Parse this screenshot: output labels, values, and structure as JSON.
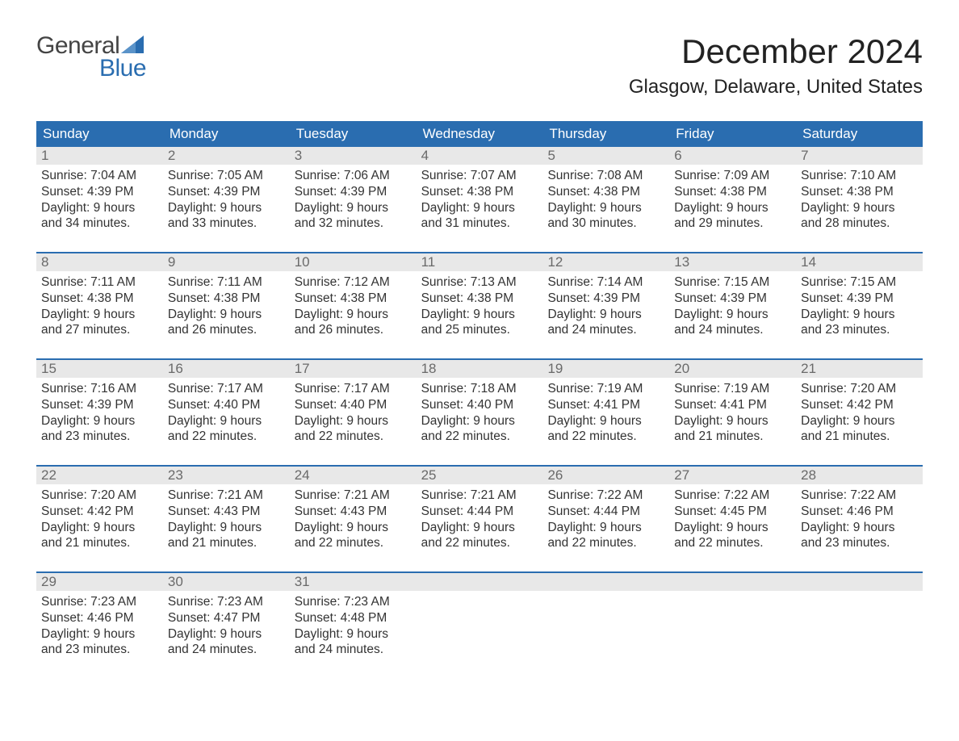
{
  "logo": {
    "word1": "General",
    "word2": "Blue"
  },
  "title": "December 2024",
  "subtitle": "Glasgow, Delaware, United States",
  "colors": {
    "header_bg": "#2a6db0",
    "header_text": "#ffffff",
    "daynum_bg": "#e8e8e8",
    "daynum_text": "#6a6a6a",
    "body_text": "#333333",
    "row_border": "#2a6db0",
    "logo_gray": "#444444",
    "logo_blue": "#2a6db0",
    "page_bg": "#ffffff"
  },
  "typography": {
    "title_fontsize": 42,
    "subtitle_fontsize": 24,
    "weekday_fontsize": 17,
    "daynum_fontsize": 17,
    "body_fontsize": 15.5,
    "logo_fontsize": 30
  },
  "calendar": {
    "type": "table",
    "weekdays": [
      "Sunday",
      "Monday",
      "Tuesday",
      "Wednesday",
      "Thursday",
      "Friday",
      "Saturday"
    ],
    "weeks": [
      [
        {
          "day": "1",
          "sunrise": "Sunrise: 7:04 AM",
          "sunset": "Sunset: 4:39 PM",
          "daylight1": "Daylight: 9 hours",
          "daylight2": "and 34 minutes."
        },
        {
          "day": "2",
          "sunrise": "Sunrise: 7:05 AM",
          "sunset": "Sunset: 4:39 PM",
          "daylight1": "Daylight: 9 hours",
          "daylight2": "and 33 minutes."
        },
        {
          "day": "3",
          "sunrise": "Sunrise: 7:06 AM",
          "sunset": "Sunset: 4:39 PM",
          "daylight1": "Daylight: 9 hours",
          "daylight2": "and 32 minutes."
        },
        {
          "day": "4",
          "sunrise": "Sunrise: 7:07 AM",
          "sunset": "Sunset: 4:38 PM",
          "daylight1": "Daylight: 9 hours",
          "daylight2": "and 31 minutes."
        },
        {
          "day": "5",
          "sunrise": "Sunrise: 7:08 AM",
          "sunset": "Sunset: 4:38 PM",
          "daylight1": "Daylight: 9 hours",
          "daylight2": "and 30 minutes."
        },
        {
          "day": "6",
          "sunrise": "Sunrise: 7:09 AM",
          "sunset": "Sunset: 4:38 PM",
          "daylight1": "Daylight: 9 hours",
          "daylight2": "and 29 minutes."
        },
        {
          "day": "7",
          "sunrise": "Sunrise: 7:10 AM",
          "sunset": "Sunset: 4:38 PM",
          "daylight1": "Daylight: 9 hours",
          "daylight2": "and 28 minutes."
        }
      ],
      [
        {
          "day": "8",
          "sunrise": "Sunrise: 7:11 AM",
          "sunset": "Sunset: 4:38 PM",
          "daylight1": "Daylight: 9 hours",
          "daylight2": "and 27 minutes."
        },
        {
          "day": "9",
          "sunrise": "Sunrise: 7:11 AM",
          "sunset": "Sunset: 4:38 PM",
          "daylight1": "Daylight: 9 hours",
          "daylight2": "and 26 minutes."
        },
        {
          "day": "10",
          "sunrise": "Sunrise: 7:12 AM",
          "sunset": "Sunset: 4:38 PM",
          "daylight1": "Daylight: 9 hours",
          "daylight2": "and 26 minutes."
        },
        {
          "day": "11",
          "sunrise": "Sunrise: 7:13 AM",
          "sunset": "Sunset: 4:38 PM",
          "daylight1": "Daylight: 9 hours",
          "daylight2": "and 25 minutes."
        },
        {
          "day": "12",
          "sunrise": "Sunrise: 7:14 AM",
          "sunset": "Sunset: 4:39 PM",
          "daylight1": "Daylight: 9 hours",
          "daylight2": "and 24 minutes."
        },
        {
          "day": "13",
          "sunrise": "Sunrise: 7:15 AM",
          "sunset": "Sunset: 4:39 PM",
          "daylight1": "Daylight: 9 hours",
          "daylight2": "and 24 minutes."
        },
        {
          "day": "14",
          "sunrise": "Sunrise: 7:15 AM",
          "sunset": "Sunset: 4:39 PM",
          "daylight1": "Daylight: 9 hours",
          "daylight2": "and 23 minutes."
        }
      ],
      [
        {
          "day": "15",
          "sunrise": "Sunrise: 7:16 AM",
          "sunset": "Sunset: 4:39 PM",
          "daylight1": "Daylight: 9 hours",
          "daylight2": "and 23 minutes."
        },
        {
          "day": "16",
          "sunrise": "Sunrise: 7:17 AM",
          "sunset": "Sunset: 4:40 PM",
          "daylight1": "Daylight: 9 hours",
          "daylight2": "and 22 minutes."
        },
        {
          "day": "17",
          "sunrise": "Sunrise: 7:17 AM",
          "sunset": "Sunset: 4:40 PM",
          "daylight1": "Daylight: 9 hours",
          "daylight2": "and 22 minutes."
        },
        {
          "day": "18",
          "sunrise": "Sunrise: 7:18 AM",
          "sunset": "Sunset: 4:40 PM",
          "daylight1": "Daylight: 9 hours",
          "daylight2": "and 22 minutes."
        },
        {
          "day": "19",
          "sunrise": "Sunrise: 7:19 AM",
          "sunset": "Sunset: 4:41 PM",
          "daylight1": "Daylight: 9 hours",
          "daylight2": "and 22 minutes."
        },
        {
          "day": "20",
          "sunrise": "Sunrise: 7:19 AM",
          "sunset": "Sunset: 4:41 PM",
          "daylight1": "Daylight: 9 hours",
          "daylight2": "and 21 minutes."
        },
        {
          "day": "21",
          "sunrise": "Sunrise: 7:20 AM",
          "sunset": "Sunset: 4:42 PM",
          "daylight1": "Daylight: 9 hours",
          "daylight2": "and 21 minutes."
        }
      ],
      [
        {
          "day": "22",
          "sunrise": "Sunrise: 7:20 AM",
          "sunset": "Sunset: 4:42 PM",
          "daylight1": "Daylight: 9 hours",
          "daylight2": "and 21 minutes."
        },
        {
          "day": "23",
          "sunrise": "Sunrise: 7:21 AM",
          "sunset": "Sunset: 4:43 PM",
          "daylight1": "Daylight: 9 hours",
          "daylight2": "and 21 minutes."
        },
        {
          "day": "24",
          "sunrise": "Sunrise: 7:21 AM",
          "sunset": "Sunset: 4:43 PM",
          "daylight1": "Daylight: 9 hours",
          "daylight2": "and 22 minutes."
        },
        {
          "day": "25",
          "sunrise": "Sunrise: 7:21 AM",
          "sunset": "Sunset: 4:44 PM",
          "daylight1": "Daylight: 9 hours",
          "daylight2": "and 22 minutes."
        },
        {
          "day": "26",
          "sunrise": "Sunrise: 7:22 AM",
          "sunset": "Sunset: 4:44 PM",
          "daylight1": "Daylight: 9 hours",
          "daylight2": "and 22 minutes."
        },
        {
          "day": "27",
          "sunrise": "Sunrise: 7:22 AM",
          "sunset": "Sunset: 4:45 PM",
          "daylight1": "Daylight: 9 hours",
          "daylight2": "and 22 minutes."
        },
        {
          "day": "28",
          "sunrise": "Sunrise: 7:22 AM",
          "sunset": "Sunset: 4:46 PM",
          "daylight1": "Daylight: 9 hours",
          "daylight2": "and 23 minutes."
        }
      ],
      [
        {
          "day": "29",
          "sunrise": "Sunrise: 7:23 AM",
          "sunset": "Sunset: 4:46 PM",
          "daylight1": "Daylight: 9 hours",
          "daylight2": "and 23 minutes."
        },
        {
          "day": "30",
          "sunrise": "Sunrise: 7:23 AM",
          "sunset": "Sunset: 4:47 PM",
          "daylight1": "Daylight: 9 hours",
          "daylight2": "and 24 minutes."
        },
        {
          "day": "31",
          "sunrise": "Sunrise: 7:23 AM",
          "sunset": "Sunset: 4:48 PM",
          "daylight1": "Daylight: 9 hours",
          "daylight2": "and 24 minutes."
        },
        {
          "empty": true
        },
        {
          "empty": true
        },
        {
          "empty": true
        },
        {
          "empty": true
        }
      ]
    ]
  }
}
